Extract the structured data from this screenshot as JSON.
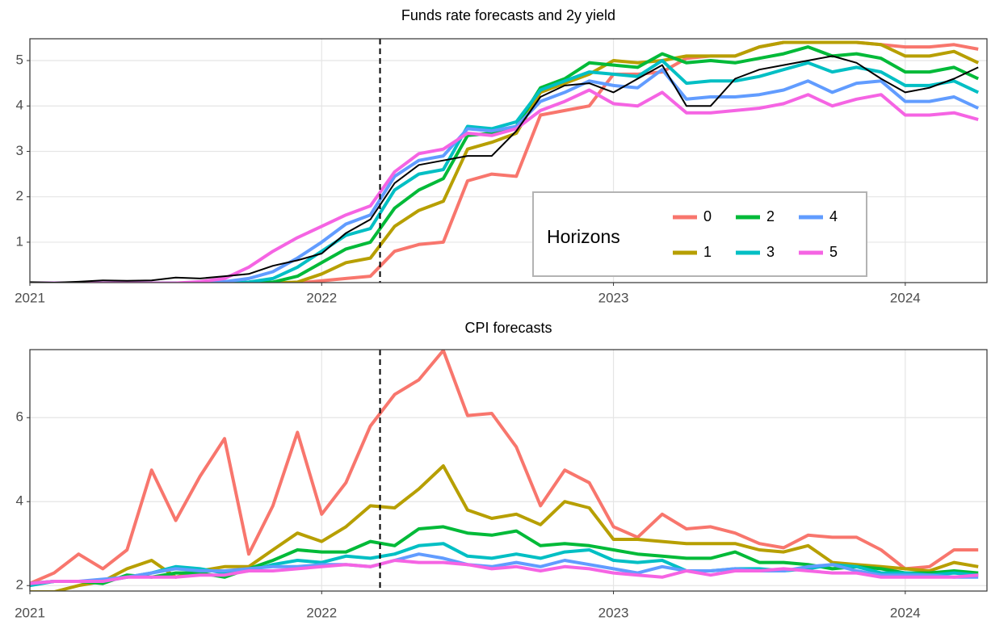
{
  "chart_data": [
    {
      "type": "line",
      "title": "Funds rate forecasts and 2y yield",
      "x": [
        2021,
        2021.083,
        2021.167,
        2021.25,
        2021.333,
        2021.417,
        2021.5,
        2021.583,
        2021.667,
        2021.75,
        2021.833,
        2021.917,
        2022,
        2022.083,
        2022.167,
        2022.25,
        2022.333,
        2022.417,
        2022.5,
        2022.583,
        2022.667,
        2022.75,
        2022.833,
        2022.917,
        2023,
        2023.083,
        2023.167,
        2023.25,
        2023.333,
        2023.417,
        2023.5,
        2023.583,
        2023.667,
        2023.75,
        2023.833,
        2023.917,
        2024,
        2024.083,
        2024.167,
        2024.25
      ],
      "xlim": [
        2021,
        2024.28
      ],
      "xticks": [
        2021,
        2022,
        2023,
        2024
      ],
      "ylim": [
        0.11,
        5.48
      ],
      "yticks": [
        1,
        2,
        3,
        4,
        5
      ],
      "grid": true,
      "vline": 2022.2,
      "legend": {
        "title": "Horizons",
        "position": "bottom-right"
      },
      "series": [
        {
          "name": "0",
          "color": "#F8766D",
          "values": [
            0.1,
            0.1,
            0.1,
            0.1,
            0.1,
            0.1,
            0.1,
            0.1,
            0.1,
            0.1,
            0.1,
            0.1,
            0.15,
            0.2,
            0.25,
            0.8,
            0.95,
            1.0,
            2.35,
            2.5,
            2.45,
            3.8,
            3.9,
            4.0,
            4.7,
            4.7,
            4.75,
            5.05,
            5.1,
            5.1,
            5.3,
            5.4,
            5.4,
            5.4,
            5.4,
            5.35,
            5.3,
            5.3,
            5.35,
            5.25
          ]
        },
        {
          "name": "1",
          "color": "#B79F00",
          "values": [
            0.1,
            0.1,
            0.1,
            0.1,
            0.1,
            0.1,
            0.1,
            0.1,
            0.1,
            0.1,
            0.1,
            0.12,
            0.3,
            0.55,
            0.65,
            1.35,
            1.7,
            1.9,
            3.05,
            3.2,
            3.4,
            4.3,
            4.5,
            4.7,
            5.0,
            4.95,
            5.0,
            5.1,
            5.1,
            5.1,
            5.3,
            5.4,
            5.4,
            5.4,
            5.4,
            5.35,
            5.1,
            5.1,
            5.2,
            4.95
          ]
        },
        {
          "name": "2",
          "color": "#00BA38",
          "values": [
            0.1,
            0.1,
            0.1,
            0.1,
            0.1,
            0.1,
            0.1,
            0.1,
            0.1,
            0.1,
            0.12,
            0.25,
            0.55,
            0.85,
            1.0,
            1.75,
            2.15,
            2.4,
            3.35,
            3.4,
            3.55,
            4.4,
            4.6,
            4.95,
            4.9,
            4.85,
            5.15,
            4.95,
            5.0,
            4.95,
            5.05,
            5.15,
            5.3,
            5.1,
            5.15,
            5.05,
            4.75,
            4.75,
            4.85,
            4.6
          ]
        },
        {
          "name": "3",
          "color": "#00BFC4",
          "values": [
            0.1,
            0.1,
            0.1,
            0.1,
            0.1,
            0.1,
            0.1,
            0.1,
            0.1,
            0.12,
            0.2,
            0.45,
            0.8,
            1.15,
            1.3,
            2.15,
            2.5,
            2.6,
            3.55,
            3.5,
            3.65,
            4.35,
            4.55,
            4.75,
            4.7,
            4.65,
            5.0,
            4.5,
            4.55,
            4.55,
            4.65,
            4.8,
            4.95,
            4.75,
            4.85,
            4.75,
            4.45,
            4.45,
            4.55,
            4.3
          ]
        },
        {
          "name": "4",
          "color": "#619CFF",
          "values": [
            0.1,
            0.1,
            0.1,
            0.1,
            0.1,
            0.1,
            0.1,
            0.1,
            0.13,
            0.2,
            0.35,
            0.65,
            1.0,
            1.4,
            1.6,
            2.45,
            2.8,
            2.9,
            3.5,
            3.45,
            3.55,
            4.1,
            4.3,
            4.55,
            4.45,
            4.4,
            4.8,
            4.15,
            4.2,
            4.2,
            4.25,
            4.35,
            4.55,
            4.3,
            4.5,
            4.55,
            4.1,
            4.1,
            4.2,
            3.95
          ]
        },
        {
          "name": "5",
          "color": "#F564E3",
          "values": [
            0.1,
            0.1,
            0.1,
            0.1,
            0.1,
            0.1,
            0.1,
            0.13,
            0.2,
            0.45,
            0.8,
            1.1,
            1.35,
            1.6,
            1.8,
            2.55,
            2.95,
            3.05,
            3.4,
            3.35,
            3.5,
            3.9,
            4.1,
            4.35,
            4.05,
            4.0,
            4.3,
            3.85,
            3.85,
            3.9,
            3.95,
            4.05,
            4.25,
            4.0,
            4.15,
            4.25,
            3.8,
            3.8,
            3.85,
            3.7
          ]
        },
        {
          "color": "#000000",
          "values": [
            0.12,
            0.11,
            0.13,
            0.16,
            0.15,
            0.16,
            0.22,
            0.2,
            0.25,
            0.3,
            0.48,
            0.6,
            0.75,
            1.2,
            1.5,
            2.3,
            2.7,
            2.8,
            2.9,
            2.9,
            3.45,
            4.2,
            4.45,
            4.5,
            4.3,
            4.6,
            4.9,
            4.0,
            4.0,
            4.6,
            4.8,
            4.9,
            5.0,
            5.1,
            4.95,
            4.6,
            4.3,
            4.4,
            4.6,
            4.85
          ]
        }
      ]
    },
    {
      "type": "line",
      "title": "CPI forecasts",
      "x": [
        2021,
        2021.083,
        2021.167,
        2021.25,
        2021.333,
        2021.417,
        2021.5,
        2021.583,
        2021.667,
        2021.75,
        2021.833,
        2021.917,
        2022,
        2022.083,
        2022.167,
        2022.25,
        2022.333,
        2022.417,
        2022.5,
        2022.583,
        2022.667,
        2022.75,
        2022.833,
        2022.917,
        2023,
        2023.083,
        2023.167,
        2023.25,
        2023.333,
        2023.417,
        2023.5,
        2023.583,
        2023.667,
        2023.75,
        2023.833,
        2023.917,
        2024,
        2024.083,
        2024.167,
        2024.25
      ],
      "xlim": [
        2021,
        2024.28
      ],
      "xticks": [
        2021,
        2022,
        2023,
        2024
      ],
      "ylim": [
        1.87,
        7.62
      ],
      "yticks": [
        2,
        4,
        6
      ],
      "grid": true,
      "vline": 2022.2,
      "series": [
        {
          "color": "#F8766D",
          "values": [
            2.05,
            2.3,
            2.75,
            2.4,
            2.85,
            4.75,
            3.55,
            4.6,
            5.5,
            2.75,
            3.9,
            5.65,
            3.7,
            4.45,
            5.8,
            6.55,
            6.9,
            7.6,
            6.05,
            6.1,
            5.3,
            3.9,
            4.75,
            4.45,
            3.4,
            3.15,
            3.7,
            3.35,
            3.4,
            3.25,
            3.0,
            2.9,
            3.2,
            3.15,
            3.15,
            2.85,
            2.4,
            2.45,
            2.85,
            2.85
          ]
        },
        {
          "color": "#B79F00",
          "values": [
            1.85,
            1.85,
            2.0,
            2.1,
            2.4,
            2.6,
            2.2,
            2.35,
            2.45,
            2.45,
            2.85,
            3.25,
            3.05,
            3.4,
            3.9,
            3.85,
            4.3,
            4.85,
            3.8,
            3.6,
            3.7,
            3.45,
            4.0,
            3.85,
            3.1,
            3.1,
            3.05,
            3.0,
            3.0,
            3.0,
            2.85,
            2.8,
            2.95,
            2.55,
            2.5,
            2.45,
            2.4,
            2.35,
            2.55,
            2.45
          ]
        },
        {
          "color": "#00BA38",
          "values": [
            2.05,
            2.1,
            2.1,
            2.05,
            2.25,
            2.2,
            2.3,
            2.3,
            2.2,
            2.4,
            2.6,
            2.85,
            2.8,
            2.8,
            3.05,
            2.95,
            3.35,
            3.4,
            3.25,
            3.2,
            3.3,
            2.95,
            3.0,
            2.95,
            2.85,
            2.75,
            2.7,
            2.65,
            2.65,
            2.8,
            2.55,
            2.55,
            2.5,
            2.4,
            2.45,
            2.4,
            2.3,
            2.3,
            2.35,
            2.3
          ]
        },
        {
          "color": "#00BFC4",
          "values": [
            2.0,
            2.1,
            2.1,
            2.1,
            2.2,
            2.3,
            2.45,
            2.4,
            2.3,
            2.35,
            2.5,
            2.6,
            2.55,
            2.7,
            2.65,
            2.75,
            2.95,
            3.0,
            2.7,
            2.65,
            2.75,
            2.65,
            2.8,
            2.85,
            2.6,
            2.55,
            2.6,
            2.35,
            2.35,
            2.4,
            2.4,
            2.35,
            2.4,
            2.5,
            2.45,
            2.3,
            2.3,
            2.25,
            2.3,
            2.25
          ]
        },
        {
          "color": "#619CFF",
          "values": [
            2.05,
            2.1,
            2.1,
            2.15,
            2.2,
            2.3,
            2.4,
            2.35,
            2.35,
            2.4,
            2.45,
            2.45,
            2.5,
            2.5,
            2.45,
            2.6,
            2.75,
            2.65,
            2.5,
            2.45,
            2.55,
            2.45,
            2.6,
            2.5,
            2.4,
            2.3,
            2.45,
            2.35,
            2.35,
            2.4,
            2.35,
            2.35,
            2.45,
            2.5,
            2.35,
            2.25,
            2.25,
            2.25,
            2.2,
            2.2
          ]
        },
        {
          "color": "#F564E3",
          "values": [
            2.05,
            2.1,
            2.1,
            2.1,
            2.2,
            2.2,
            2.2,
            2.25,
            2.25,
            2.35,
            2.35,
            2.4,
            2.45,
            2.5,
            2.45,
            2.6,
            2.55,
            2.55,
            2.5,
            2.4,
            2.45,
            2.35,
            2.45,
            2.4,
            2.3,
            2.25,
            2.2,
            2.35,
            2.25,
            2.35,
            2.35,
            2.4,
            2.35,
            2.3,
            2.3,
            2.2,
            2.2,
            2.2,
            2.2,
            2.25
          ]
        }
      ]
    }
  ]
}
